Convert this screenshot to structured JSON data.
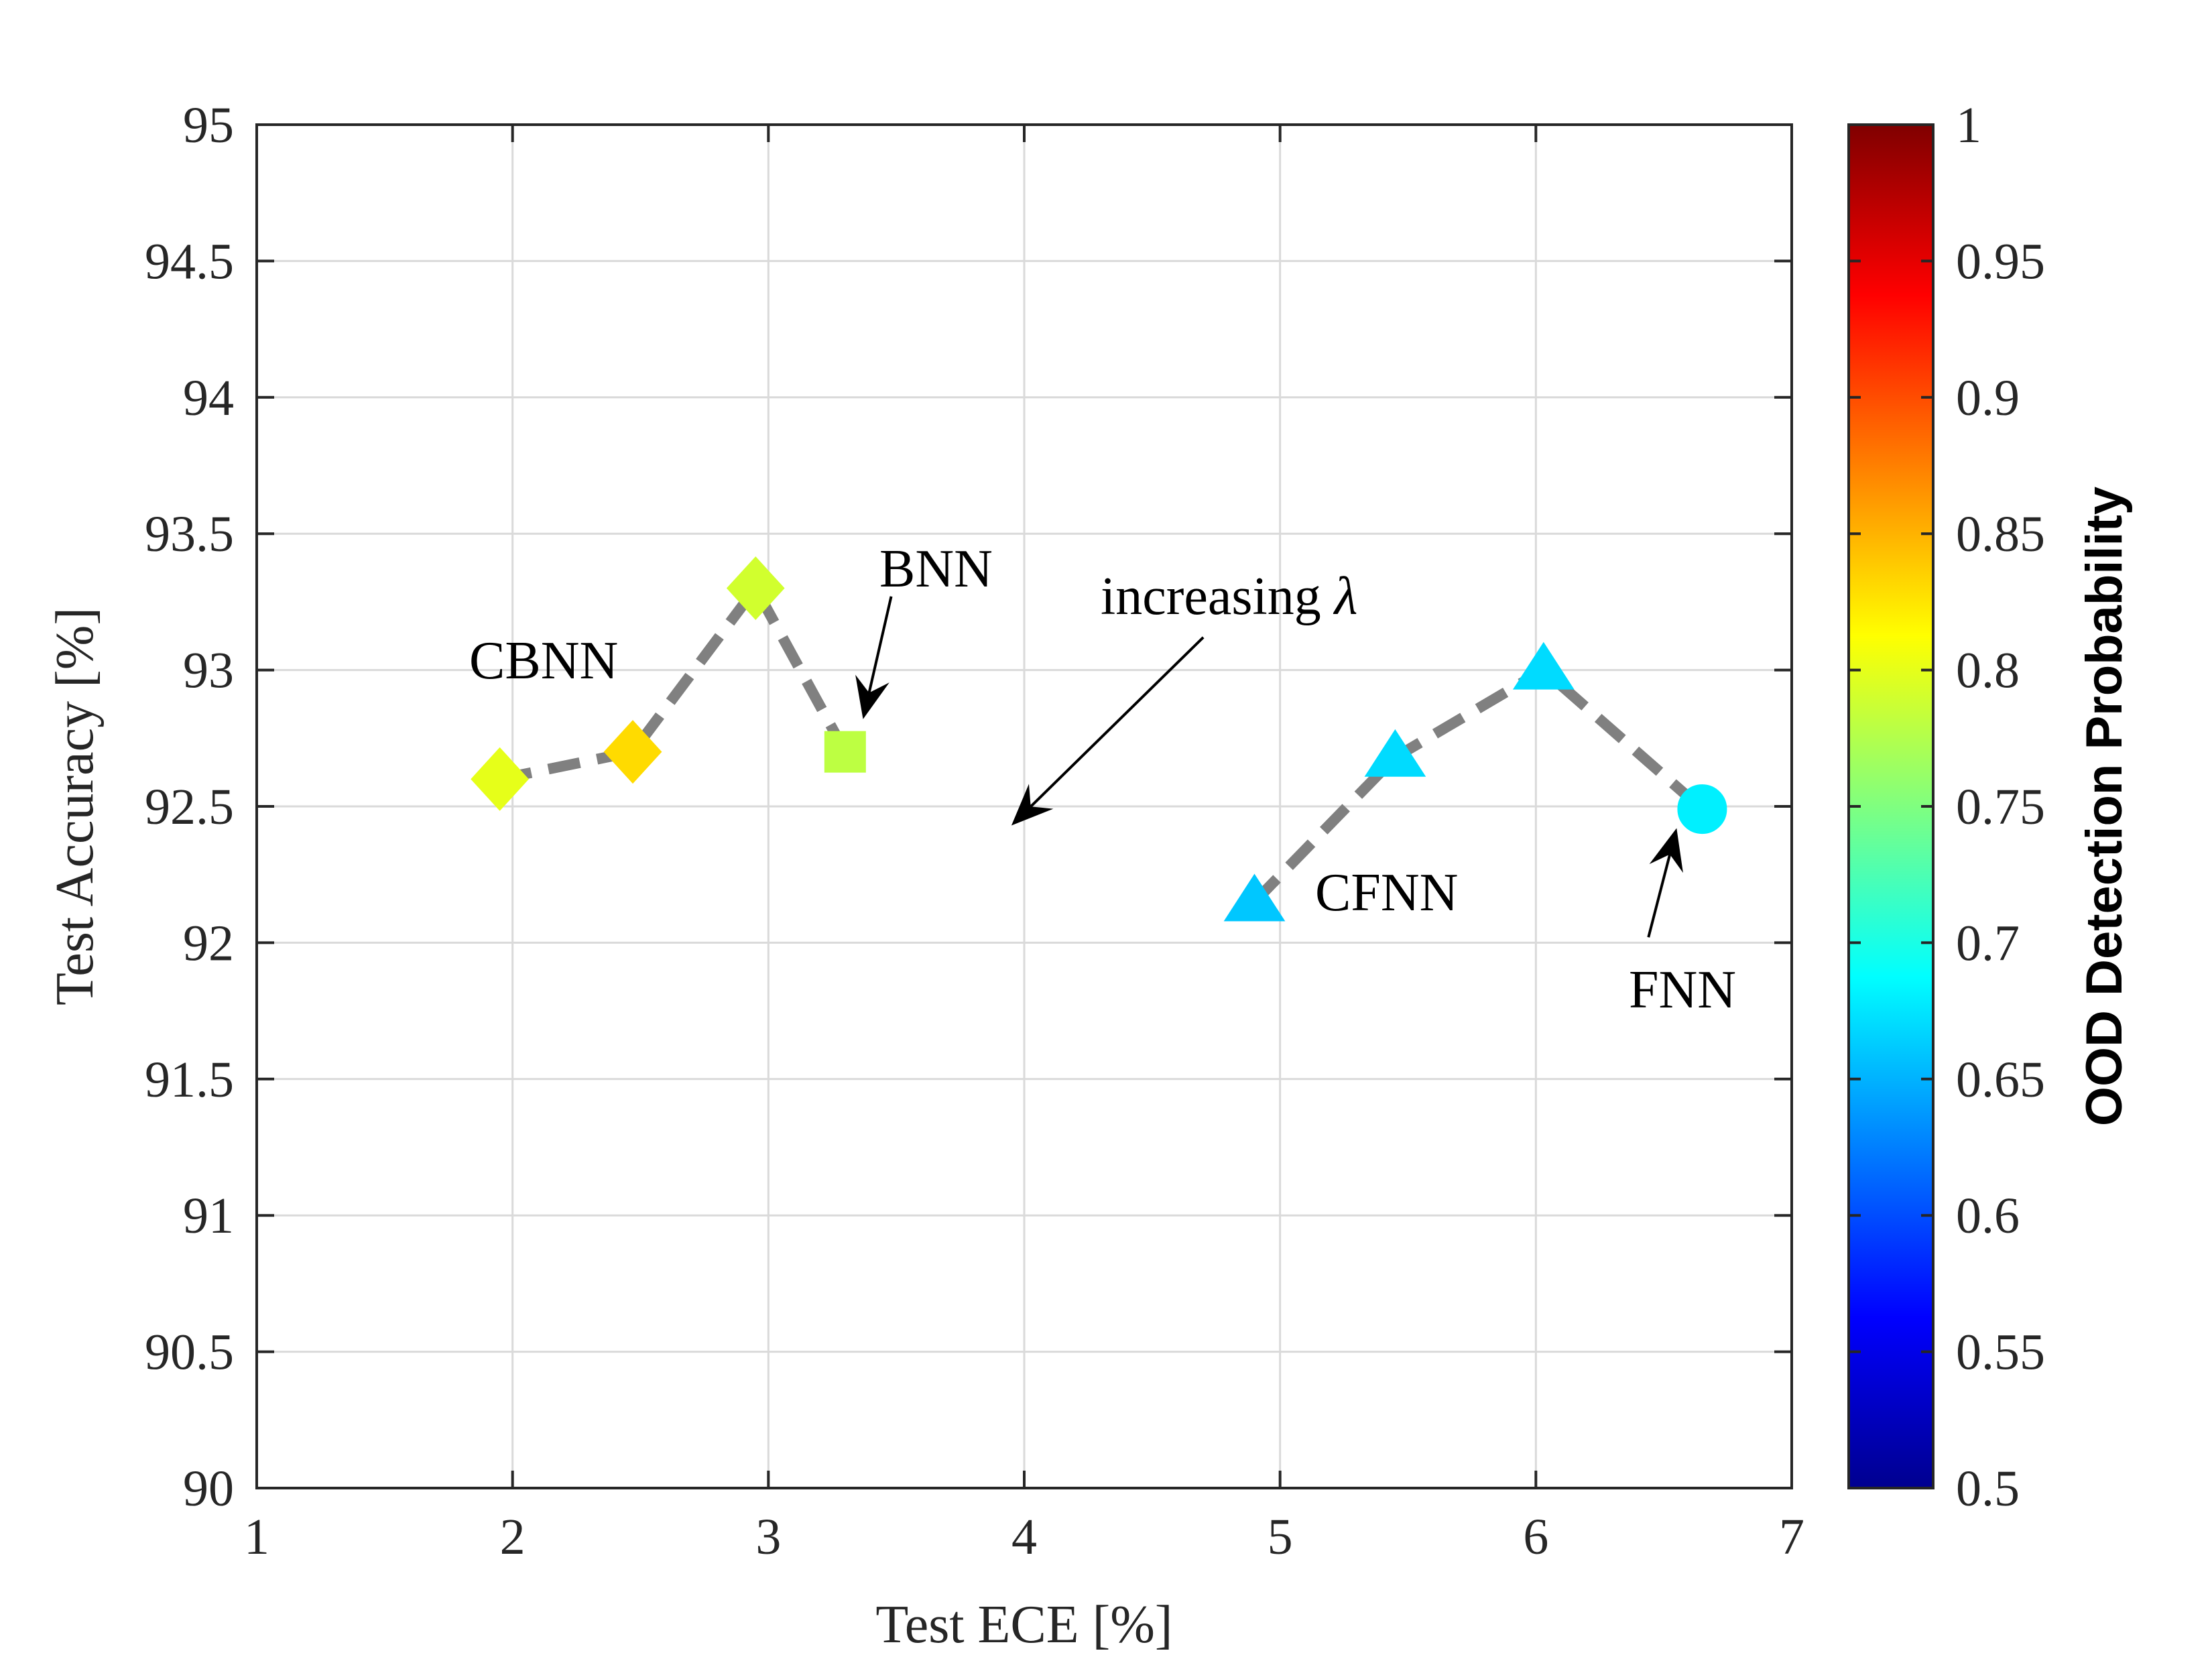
{
  "chart_data": {
    "type": "scatter",
    "title": "",
    "xlabel": "Test ECE [%]",
    "ylabel": "Test Accuracy [%]",
    "xlim": [
      1,
      7
    ],
    "ylim": [
      90,
      95
    ],
    "xticks": [
      1,
      2,
      3,
      4,
      5,
      6,
      7
    ],
    "yticks": [
      90,
      90.5,
      91,
      91.5,
      92,
      92.5,
      93,
      93.5,
      94,
      94.5,
      95
    ],
    "xtick_labels": [
      "1",
      "2",
      "3",
      "4",
      "5",
      "6",
      "7"
    ],
    "ytick_labels": [
      "90",
      "90.5",
      "91",
      "91.5",
      "92",
      "92.5",
      "93",
      "93.5",
      "94",
      "94.5",
      "95"
    ],
    "grid": true,
    "colorbar": {
      "label": "OOD Detection Probability",
      "range": [
        0.5,
        1
      ],
      "colormap": "jet",
      "ticks": [
        0.5,
        0.55,
        0.6,
        0.65,
        0.7,
        0.75,
        0.8,
        0.85,
        0.9,
        0.95,
        1
      ],
      "tick_labels": [
        "0.5",
        "0.55",
        "0.6",
        "0.65",
        "0.7",
        "0.75",
        "0.8",
        "0.85",
        "0.9",
        "0.95",
        "1"
      ]
    },
    "series": [
      {
        "name": "CBNN",
        "marker": "diamond",
        "connected": true,
        "points": [
          {
            "x": 1.95,
            "y": 92.6,
            "ood": 0.8
          },
          {
            "x": 2.47,
            "y": 92.7,
            "ood": 0.83
          },
          {
            "x": 2.95,
            "y": 93.3,
            "ood": 0.79
          }
        ]
      },
      {
        "name": "BNN",
        "marker": "square",
        "connected": true,
        "points": [
          {
            "x": 3.3,
            "y": 92.7,
            "ood": 0.78
          }
        ]
      },
      {
        "name": "CFNN",
        "marker": "triangle",
        "connected": true,
        "points": [
          {
            "x": 4.9,
            "y": 92.15,
            "ood": 0.66
          },
          {
            "x": 5.45,
            "y": 92.68,
            "ood": 0.67
          },
          {
            "x": 6.03,
            "y": 93.0,
            "ood": 0.67
          }
        ]
      },
      {
        "name": "FNN",
        "marker": "circle",
        "connected": true,
        "points": [
          {
            "x": 6.65,
            "y": 92.49,
            "ood": 0.68
          }
        ]
      }
    ],
    "dashed_lines": [
      {
        "name": "bnn-path",
        "x": [
          1.95,
          2.47,
          2.95,
          3.3
        ],
        "y": [
          92.6,
          92.7,
          93.3,
          92.7
        ]
      },
      {
        "name": "fnn-path",
        "x": [
          4.9,
          5.45,
          6.03,
          6.65
        ],
        "y": [
          92.15,
          92.68,
          93.0,
          92.49
        ]
      }
    ],
    "annotations": [
      {
        "name": "cbnn",
        "text": "CBNN",
        "x": 1.95,
        "y": 93.05
      },
      {
        "name": "bnn",
        "text": "BNN",
        "x": 3.45,
        "y": 93.37
      },
      {
        "name": "increasing",
        "text": "increasing ",
        "symbol": "λ",
        "x": 4.3,
        "y": 93.2
      },
      {
        "name": "cfnn",
        "text": "CFNN",
        "x": 5.15,
        "y": 92.15
      },
      {
        "name": "fnn",
        "text": "FNN",
        "x": 6.35,
        "y": 91.8
      }
    ],
    "arrows": [
      {
        "name": "bnn-arrow",
        "from": [
          3.48,
          93.27
        ],
        "to": [
          3.37,
          92.82
        ]
      },
      {
        "name": "lambda-arrow",
        "from": [
          4.7,
          93.12
        ],
        "to": [
          3.95,
          92.43
        ]
      },
      {
        "name": "fnn-arrow",
        "from": [
          6.44,
          92.02
        ],
        "to": [
          6.55,
          92.42
        ]
      }
    ]
  }
}
